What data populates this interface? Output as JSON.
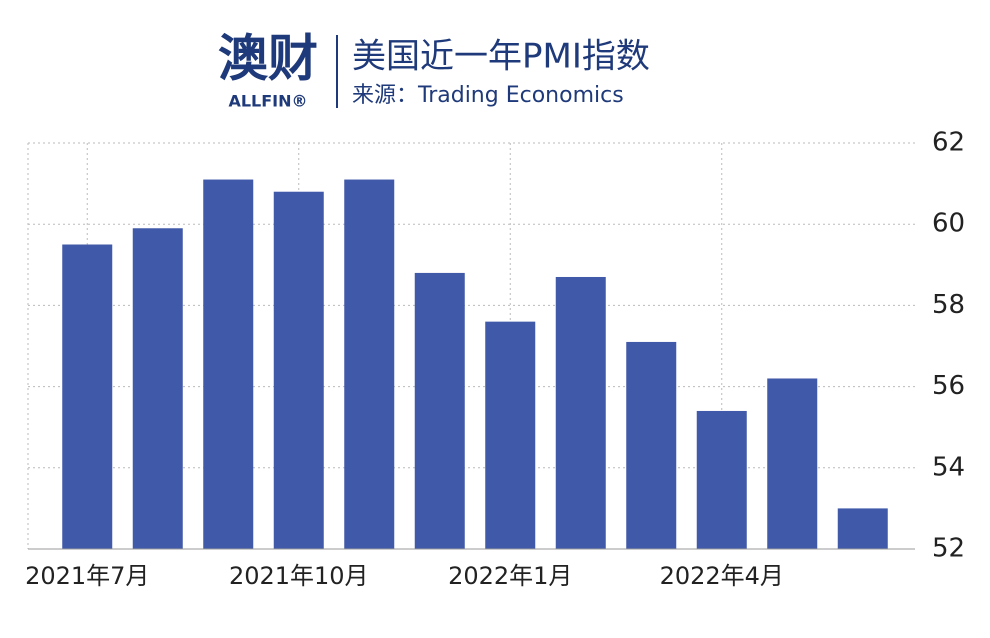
{
  "header": {
    "logo": "澳财",
    "logo_sub": "ALLFIN®",
    "title": "美国近一年PMI指数",
    "source": "来源：Trading Economics"
  },
  "chart_data": {
    "type": "bar",
    "categories": [
      "2021年7月",
      null,
      null,
      "2021年10月",
      null,
      null,
      "2022年1月",
      null,
      null,
      "2022年4月",
      null,
      null
    ],
    "values": [
      59.5,
      59.9,
      61.1,
      60.8,
      61.1,
      58.8,
      57.6,
      58.7,
      57.1,
      55.4,
      56.2,
      53.0
    ],
    "color": "#4059a9",
    "ylim": [
      52,
      62
    ],
    "yticks": [
      52,
      54,
      56,
      58,
      60,
      62
    ],
    "grid": true
  }
}
